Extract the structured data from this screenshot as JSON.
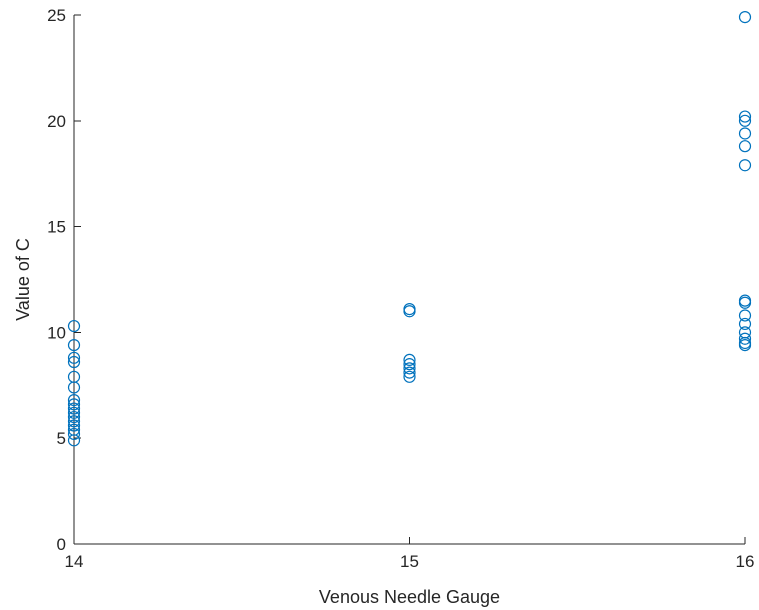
{
  "chart_data": {
    "type": "scatter",
    "title": "",
    "xlabel": "Venous Needle Gauge",
    "ylabel": "Value of C",
    "xlim": [
      14,
      16
    ],
    "ylim": [
      0,
      25
    ],
    "x_ticks": [
      "14",
      "15",
      "16"
    ],
    "y_ticks": [
      "0",
      "5",
      "10",
      "15",
      "20",
      "25"
    ],
    "grid": false,
    "marker_color": "#0072BD",
    "series": [
      {
        "points": [
          {
            "x": 14,
            "y": 10.3
          },
          {
            "x": 14,
            "y": 9.4
          },
          {
            "x": 14,
            "y": 8.8
          },
          {
            "x": 14,
            "y": 8.6
          },
          {
            "x": 14,
            "y": 7.9
          },
          {
            "x": 14,
            "y": 7.4
          },
          {
            "x": 14,
            "y": 6.8
          },
          {
            "x": 14,
            "y": 6.6
          },
          {
            "x": 14,
            "y": 6.4
          },
          {
            "x": 14,
            "y": 6.2
          },
          {
            "x": 14,
            "y": 6.0
          },
          {
            "x": 14,
            "y": 5.8
          },
          {
            "x": 14,
            "y": 5.6
          },
          {
            "x": 14,
            "y": 5.4
          },
          {
            "x": 14,
            "y": 5.2
          },
          {
            "x": 14,
            "y": 4.9
          },
          {
            "x": 15,
            "y": 11.1
          },
          {
            "x": 15,
            "y": 11.0
          },
          {
            "x": 15,
            "y": 8.7
          },
          {
            "x": 15,
            "y": 8.5
          },
          {
            "x": 15,
            "y": 8.3
          },
          {
            "x": 15,
            "y": 8.1
          },
          {
            "x": 15,
            "y": 7.9
          },
          {
            "x": 16,
            "y": 24.9
          },
          {
            "x": 16,
            "y": 20.2
          },
          {
            "x": 16,
            "y": 20.0
          },
          {
            "x": 16,
            "y": 19.4
          },
          {
            "x": 16,
            "y": 18.8
          },
          {
            "x": 16,
            "y": 17.9
          },
          {
            "x": 16,
            "y": 11.5
          },
          {
            "x": 16,
            "y": 11.4
          },
          {
            "x": 16,
            "y": 10.8
          },
          {
            "x": 16,
            "y": 10.4
          },
          {
            "x": 16,
            "y": 10.0
          },
          {
            "x": 16,
            "y": 9.7
          },
          {
            "x": 16,
            "y": 9.5
          },
          {
            "x": 16,
            "y": 9.4
          }
        ]
      }
    ]
  }
}
